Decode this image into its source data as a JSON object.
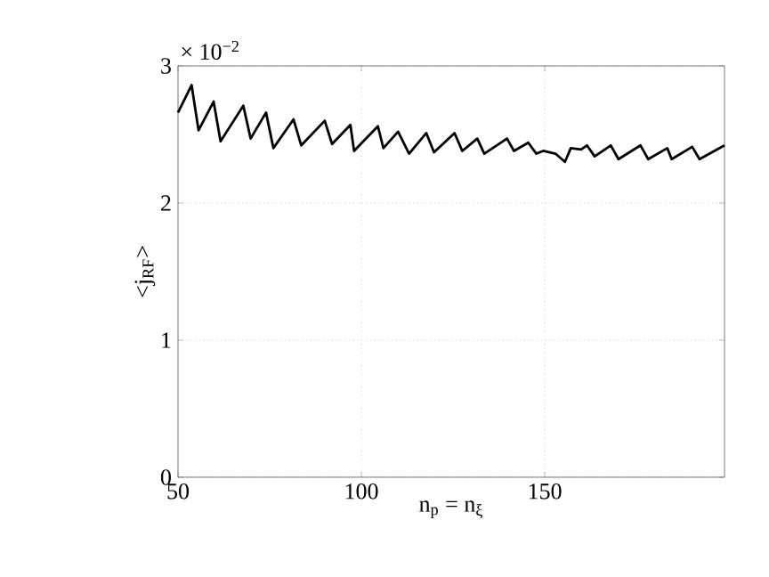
{
  "chart_data": {
    "type": "line",
    "xlabel": "n$_{p}$ = n$_{ξ}$",
    "ylabel": "<j$_{RF}$>",
    "annotations": [
      "× 10$^{−2}$"
    ],
    "xlim": [
      50,
      199
    ],
    "ylim": [
      0,
      3
    ],
    "xticks": [
      50,
      100,
      150
    ],
    "yticks": [
      0,
      1,
      2,
      3
    ],
    "grid": true,
    "marker": "none",
    "line_style": "solid",
    "series": [
      {
        "color": "#000000",
        "x": [
          50,
          53.7,
          55.6,
          59.7,
          61.6,
          67.8,
          69.8,
          74,
          76,
          81.5,
          83.6,
          90,
          92,
          97,
          98,
          104.5,
          106,
          110,
          113,
          117.7,
          119.8,
          125.4,
          127.5,
          131.6,
          133.5,
          139.7,
          141.6,
          145.5,
          147.7,
          149.6,
          152.9,
          155.5,
          157.1,
          159.9,
          161.5,
          163.6,
          168,
          170.1,
          176.1,
          178.2,
          183.4,
          184.6,
          190.2,
          192.2,
          199
        ],
        "values": [
          2.66,
          2.86,
          2.53,
          2.74,
          2.45,
          2.71,
          2.47,
          2.66,
          2.4,
          2.61,
          2.42,
          2.6,
          2.43,
          2.57,
          2.38,
          2.56,
          2.4,
          2.52,
          2.36,
          2.51,
          2.37,
          2.51,
          2.38,
          2.47,
          2.36,
          2.47,
          2.38,
          2.44,
          2.36,
          2.38,
          2.36,
          2.3,
          2.4,
          2.39,
          2.42,
          2.34,
          2.42,
          2.32,
          2.42,
          2.32,
          2.4,
          2.32,
          2.41,
          2.32,
          2.42
        ]
      }
    ]
  }
}
